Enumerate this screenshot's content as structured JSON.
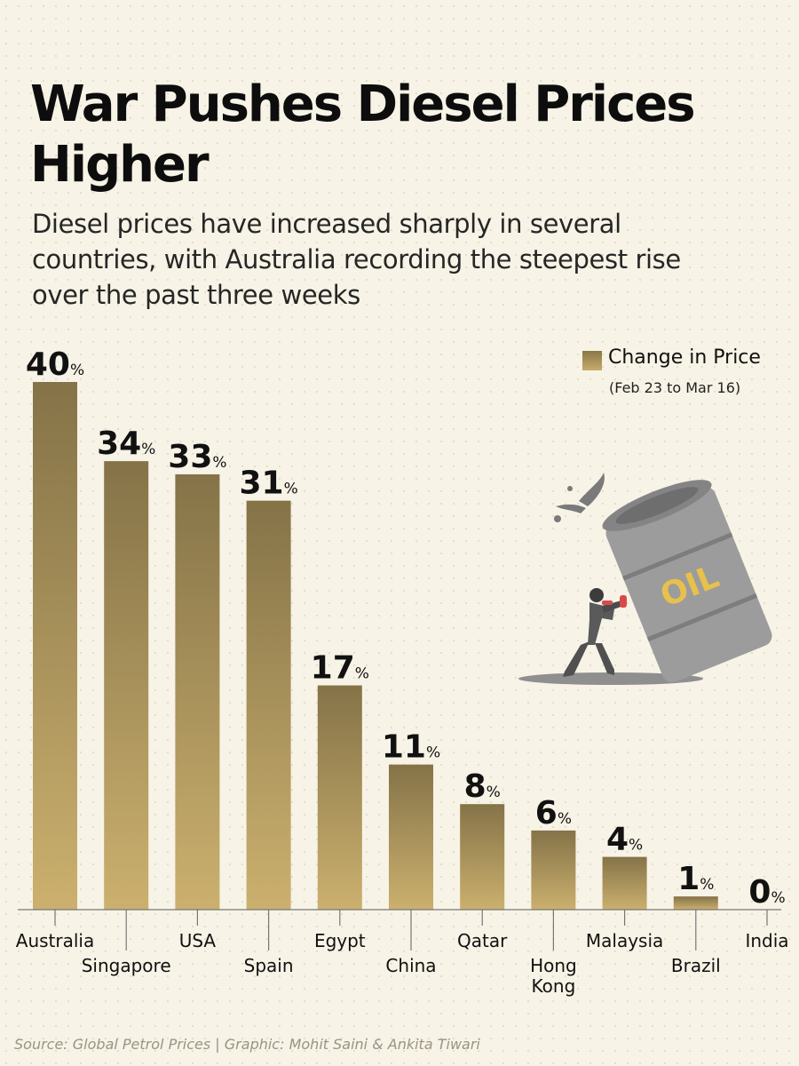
{
  "title": "War Pushes Diesel Prices Higher",
  "subtitle": "Diesel prices have increased sharply in several countries, with Australia recording the steepest rise over the past three weeks",
  "legend": {
    "label": "Change in Price",
    "sub": "(Feb 23 to Mar 16)"
  },
  "source": "Source: Global Petrol Prices | Graphic: Mohit Saini & Ankita Tiwari",
  "illustration": {
    "barrel_label": "OIL"
  },
  "colors": {
    "bar_top": "#857348",
    "bar_bottom": "#cbb06e",
    "background": "#f7f3e6",
    "text": "#111111"
  },
  "chart_data": {
    "type": "bar",
    "title": "War Pushes Diesel Prices Higher",
    "xlabel": "",
    "ylabel": "",
    "categories": [
      "Australia",
      "Singapore",
      "USA",
      "Spain",
      "Egypt",
      "China",
      "Qatar",
      "Hong Kong",
      "Malaysia",
      "Brazil",
      "India"
    ],
    "series": [
      {
        "name": "Change in Price",
        "values": [
          40,
          34,
          33,
          31,
          17,
          11,
          8,
          6,
          4,
          1,
          0
        ]
      }
    ],
    "value_suffix": "%",
    "ylim": [
      0,
      40
    ],
    "grid": false,
    "legend_position": "top-right"
  }
}
